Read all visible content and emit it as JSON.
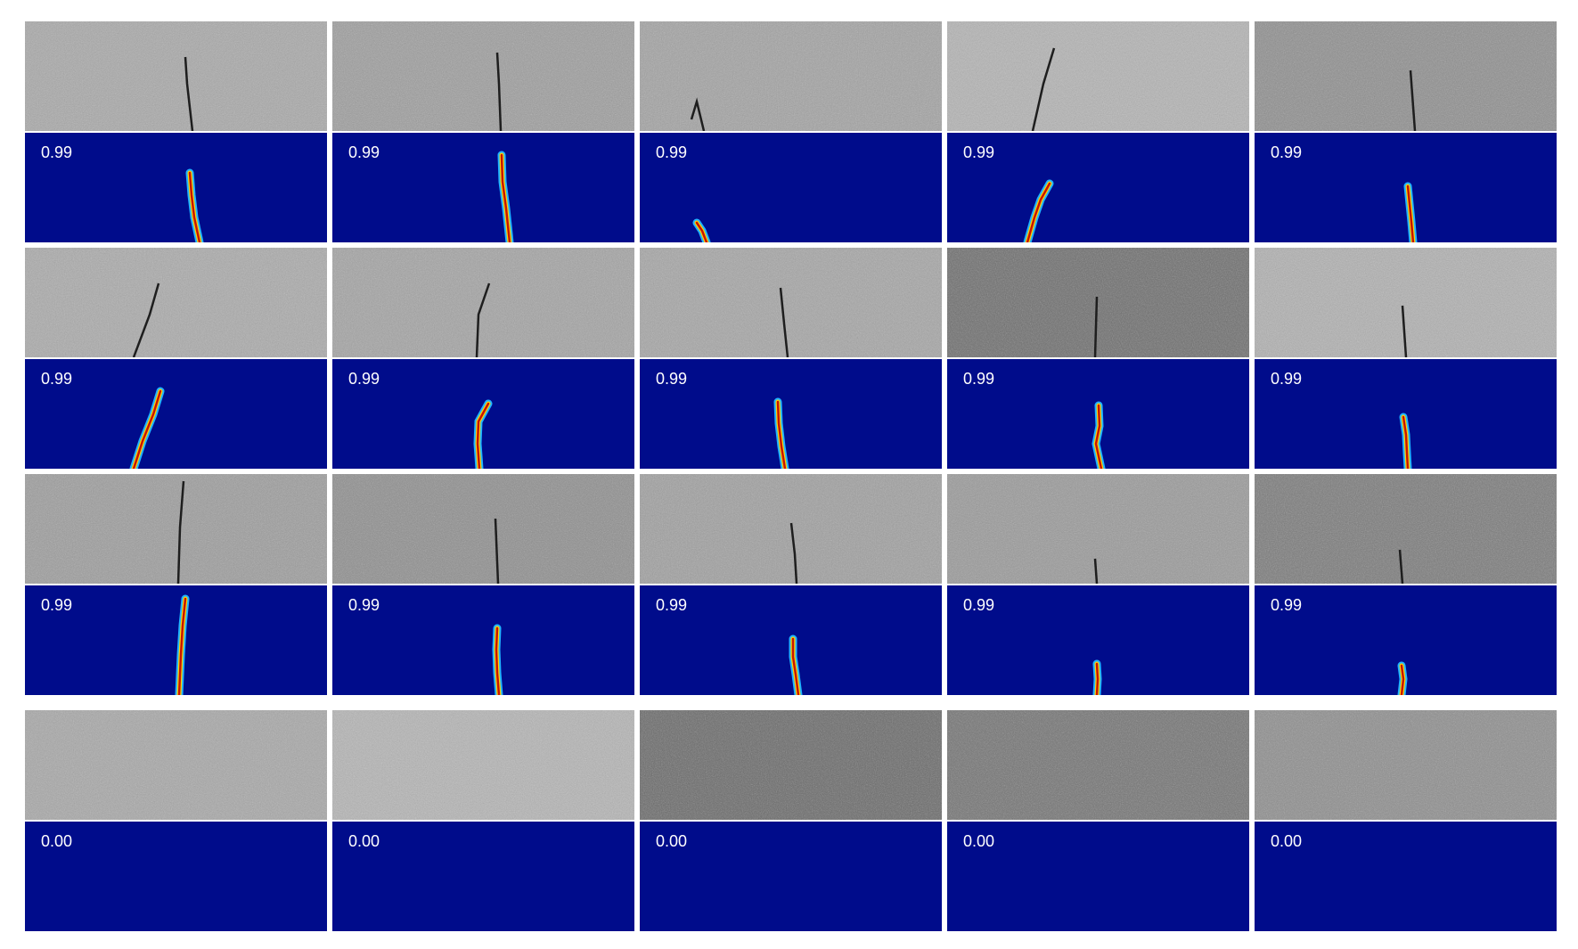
{
  "colors": {
    "background": "#ffffff",
    "heatmap_background": "#000c8b",
    "crack_core": "#c81400",
    "crack_mid": "#ffd000",
    "crack_edge": "#20b4ff"
  },
  "rows": [
    {
      "samples": [
        {
          "score": "0.99",
          "crack": true
        },
        {
          "score": "0.99",
          "crack": true
        },
        {
          "score": "0.99",
          "crack": true
        },
        {
          "score": "0.99",
          "crack": true
        },
        {
          "score": "0.99",
          "crack": true
        }
      ]
    },
    {
      "samples": [
        {
          "score": "0.99",
          "crack": true
        },
        {
          "score": "0.99",
          "crack": true
        },
        {
          "score": "0.99",
          "crack": true
        },
        {
          "score": "0.99",
          "crack": true
        },
        {
          "score": "0.99",
          "crack": true
        }
      ]
    },
    {
      "samples": [
        {
          "score": "0.99",
          "crack": true
        },
        {
          "score": "0.99",
          "crack": true
        },
        {
          "score": "0.99",
          "crack": true
        },
        {
          "score": "0.99",
          "crack": true
        },
        {
          "score": "0.99",
          "crack": true
        }
      ]
    },
    {
      "samples": [
        {
          "score": "0.00",
          "crack": false
        },
        {
          "score": "0.00",
          "crack": false
        },
        {
          "score": "0.00",
          "crack": false
        },
        {
          "score": "0.00",
          "crack": false
        },
        {
          "score": "0.00",
          "crack": false
        }
      ]
    }
  ]
}
